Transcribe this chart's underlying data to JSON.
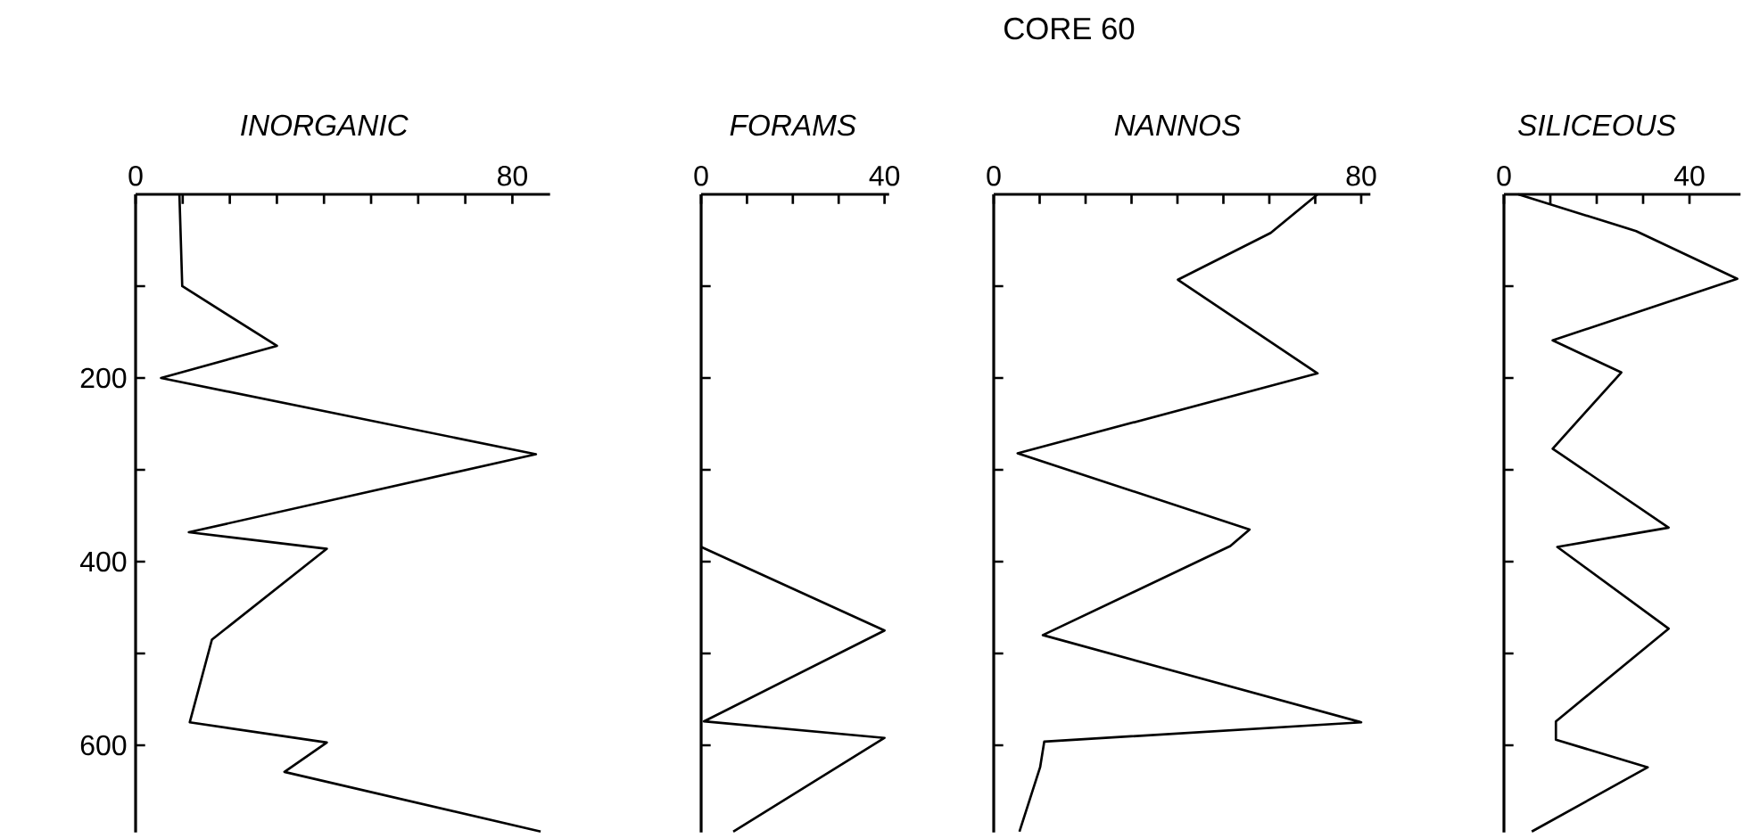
{
  "chart_data": [
    {
      "type": "line",
      "xlabel": "INORGANIC",
      "color": "#000000",
      "x": [
        9.3,
        9.9,
        30,
        5.4,
        85,
        11.3,
        40.6,
        16.2,
        11.5,
        40.6,
        31.6,
        86
      ],
      "values": [
        0,
        100,
        165,
        200,
        283,
        368,
        386,
        485,
        575,
        597,
        629,
        694
      ],
      "xlim": [
        0,
        88
      ],
      "ylim": [
        695,
        0
      ],
      "xticks": [
        0,
        {
          "value": 10,
          "label": null
        },
        {
          "value": 20,
          "label": null
        },
        {
          "value": 30,
          "label": null
        },
        {
          "value": 40,
          "label": null
        },
        {
          "value": 50,
          "label": null
        },
        {
          "value": 60,
          "label": null
        },
        {
          "value": 70,
          "label": null
        },
        80
      ],
      "yticks": [
        {
          "value": 100,
          "label": null
        },
        200,
        {
          "value": 300,
          "label": null
        },
        400,
        {
          "value": 500,
          "label": null
        },
        600
      ]
    },
    {
      "type": "line",
      "xlabel": "FORAMS",
      "color": "#000000",
      "x": [
        0,
        40,
        0.6,
        40,
        7
      ],
      "values": [
        384,
        475,
        574,
        592,
        694
      ],
      "xlim": [
        0,
        41
      ],
      "ylim": [
        695,
        0
      ],
      "xticks": [
        0,
        {
          "value": 10,
          "label": null
        },
        {
          "value": 20,
          "label": null
        },
        {
          "value": 30,
          "label": null
        },
        40
      ],
      "yticks": [
        {
          "value": 100,
          "label": null
        },
        200,
        {
          "value": 300,
          "label": null
        },
        400,
        {
          "value": 500,
          "label": null
        },
        600
      ],
      "tick_labels": "x"
    },
    {
      "type": "line",
      "title": "CORE 60",
      "xlabel": "NANNOS",
      "color": "#000000",
      "x": [
        70.5,
        60.3,
        40.1,
        70.5,
        5.2,
        55.7,
        51.5,
        10.7,
        80,
        11,
        10.1,
        5.6
      ],
      "values": [
        0,
        42,
        93,
        195,
        282,
        365,
        383,
        480,
        575,
        596,
        624,
        694
      ],
      "xlim": [
        0,
        82
      ],
      "ylim": [
        695,
        0
      ],
      "xticks": [
        0,
        {
          "value": 10,
          "label": null
        },
        {
          "value": 20,
          "label": null
        },
        {
          "value": 30,
          "label": null
        },
        {
          "value": 40,
          "label": null
        },
        {
          "value": 50,
          "label": null
        },
        {
          "value": 60,
          "label": null
        },
        {
          "value": 70,
          "label": null
        },
        80
      ],
      "yticks": [
        {
          "value": 100,
          "label": null
        },
        200,
        {
          "value": 300,
          "label": null
        },
        400,
        {
          "value": 500,
          "label": null
        },
        600
      ],
      "tick_labels": "x"
    },
    {
      "type": "line",
      "xlabel": "SILICEOUS",
      "color": "#000000",
      "x": [
        3.1,
        28.5,
        50.3,
        10.5,
        25.3,
        10.5,
        35.5,
        11.5,
        35.5,
        11.2,
        11.2,
        31,
        6
      ],
      "values": [
        0,
        40,
        92,
        159,
        194,
        277,
        363,
        384,
        473,
        574,
        594,
        624,
        694
      ],
      "xlim": [
        0,
        51
      ],
      "ylim": [
        695,
        0
      ],
      "xticks": [
        0,
        {
          "value": 10,
          "label": null
        },
        {
          "value": 20,
          "label": null
        },
        {
          "value": 30,
          "label": null
        },
        40
      ],
      "yticks": [
        {
          "value": 100,
          "label": null
        },
        200,
        {
          "value": 300,
          "label": null
        },
        400,
        {
          "value": 500,
          "label": null
        },
        600
      ],
      "tick_labels": "x"
    }
  ]
}
